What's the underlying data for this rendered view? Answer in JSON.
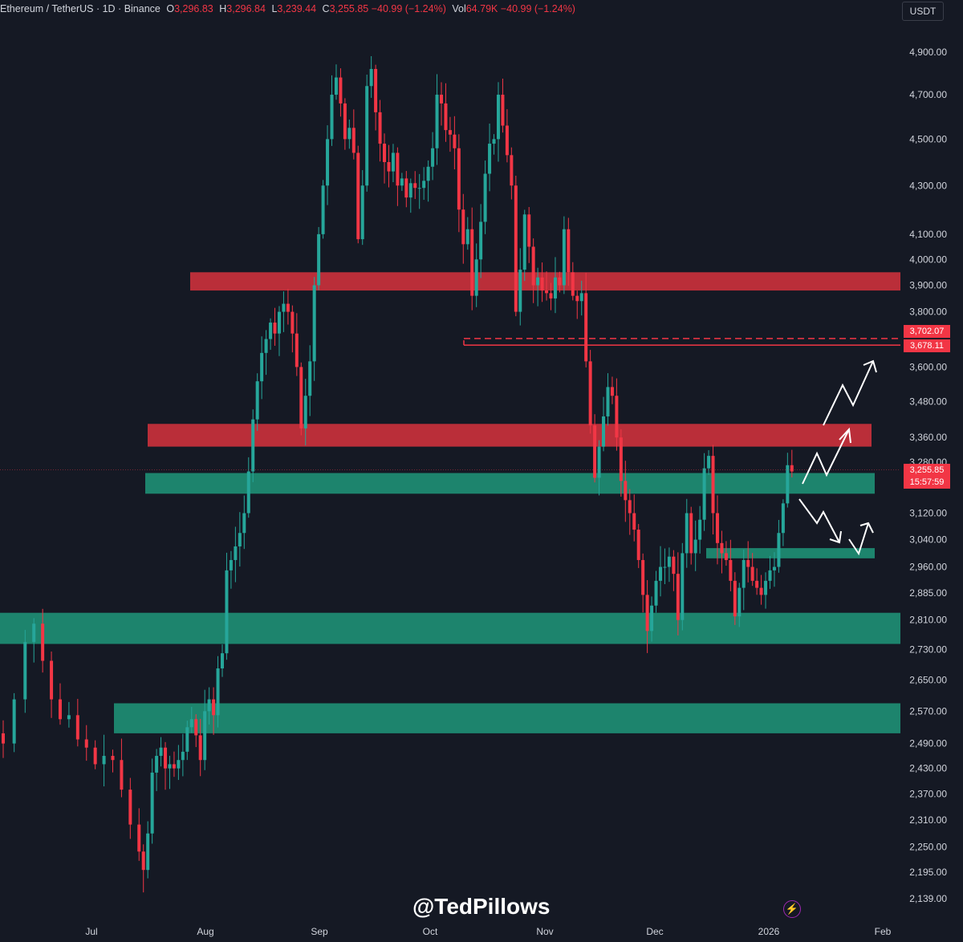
{
  "header": {
    "symbol": "Ethereum / TetherUS · 1D · Binance",
    "open_label": "O",
    "open": "3,296.83",
    "high_label": "H",
    "high": "3,296.84",
    "low_label": "L",
    "low": "3,239.44",
    "close_label": "C",
    "close": "3,255.85",
    "change": "−40.99 (−1.24%)",
    "volume_label": "Vol",
    "volume": "64.79K",
    "volume_change": "−40.99 (−1.24%)"
  },
  "currency_button": "USDT",
  "watermark": "@TedPillows",
  "price_tags": {
    "upper": "3,702.07",
    "lower": "3,678.11",
    "last": "3,255.85",
    "countdown": "15:57:59"
  },
  "colors": {
    "background": "#151924",
    "up": "#26a69a",
    "down": "#f23645",
    "resistance_zone": "#c9303c",
    "support_zone": "#1d8a72"
  },
  "chart_data": {
    "type": "candlestick",
    "title": "Ethereum / TetherUS · 1D · Binance",
    "y_ticks": [
      "4,900.00",
      "4,700.00",
      "4,500.00",
      "4,300.00",
      "4,100.00",
      "4,000.00",
      "3,900.00",
      "3,800.00",
      "3,600.00",
      "3,480.00",
      "3,360.00",
      "3,280.00",
      "3,120.00",
      "3,040.00",
      "2,960.00",
      "2,885.00",
      "2,810.00",
      "2,730.00",
      "2,650.00",
      "2,570.00",
      "2,490.00",
      "2,430.00",
      "2,370.00",
      "2,310.00",
      "2,250.00",
      "2,195.00",
      "2,139.00"
    ],
    "x_ticks": [
      "Jul",
      "Aug",
      "Sep",
      "Oct",
      "Nov",
      "Dec",
      "2026",
      "Feb"
    ],
    "y_scale": "log",
    "ylim": [
      2100,
      5000
    ],
    "resistance_zones": [
      [
        3880,
        3950
      ],
      [
        3330,
        3405
      ]
    ],
    "support_zones": [
      [
        3180,
        3245
      ],
      [
        2985,
        3015
      ],
      [
        2745,
        2830
      ],
      [
        2515,
        2590
      ]
    ],
    "levels": [
      3702.07,
      3678.11
    ],
    "last_price": 3255.85,
    "series_close_path": [
      [
        0,
        2490
      ],
      [
        5,
        2600
      ],
      [
        10,
        2750
      ],
      [
        14,
        2800
      ],
      [
        18,
        2700
      ],
      [
        22,
        2600
      ],
      [
        26,
        2550
      ],
      [
        30,
        2560
      ],
      [
        34,
        2500
      ],
      [
        38,
        2480
      ],
      [
        42,
        2440
      ],
      [
        46,
        2460
      ],
      [
        50,
        2450
      ],
      [
        54,
        2380
      ],
      [
        58,
        2300
      ],
      [
        62,
        2240
      ],
      [
        64,
        2200
      ],
      [
        66,
        2280
      ],
      [
        68,
        2420
      ],
      [
        70,
        2460
      ],
      [
        72,
        2480
      ],
      [
        74,
        2430
      ],
      [
        76,
        2440
      ],
      [
        78,
        2430
      ],
      [
        80,
        2450
      ],
      [
        82,
        2470
      ],
      [
        84,
        2530
      ],
      [
        86,
        2550
      ],
      [
        88,
        2510
      ],
      [
        90,
        2450
      ],
      [
        92,
        2570
      ],
      [
        94,
        2600
      ],
      [
        96,
        2560
      ],
      [
        98,
        2680
      ],
      [
        100,
        2720
      ],
      [
        102,
        2950
      ],
      [
        104,
        2980
      ],
      [
        106,
        3020
      ],
      [
        108,
        3060
      ],
      [
        110,
        3120
      ],
      [
        112,
        3250
      ],
      [
        114,
        3420
      ],
      [
        116,
        3550
      ],
      [
        118,
        3650
      ],
      [
        120,
        3700
      ],
      [
        122,
        3760
      ],
      [
        124,
        3720
      ],
      [
        126,
        3800
      ],
      [
        128,
        3830
      ],
      [
        130,
        3800
      ],
      [
        132,
        3720
      ],
      [
        134,
        3600
      ],
      [
        136,
        3390
      ],
      [
        138,
        3500
      ],
      [
        140,
        3620
      ],
      [
        142,
        3900
      ],
      [
        144,
        4100
      ],
      [
        146,
        4300
      ],
      [
        148,
        4500
      ],
      [
        150,
        4700
      ],
      [
        152,
        4780
      ],
      [
        154,
        4660
      ],
      [
        156,
        4500
      ],
      [
        158,
        4550
      ],
      [
        160,
        4440
      ],
      [
        162,
        4080
      ],
      [
        164,
        4300
      ],
      [
        166,
        4740
      ],
      [
        168,
        4820
      ],
      [
        170,
        4620
      ],
      [
        172,
        4480
      ],
      [
        174,
        4400
      ],
      [
        176,
        4360
      ],
      [
        178,
        4440
      ],
      [
        180,
        4300
      ],
      [
        182,
        4330
      ],
      [
        184,
        4250
      ],
      [
        186,
        4310
      ],
      [
        188,
        4290
      ],
      [
        190,
        4290
      ],
      [
        192,
        4320
      ],
      [
        194,
        4380
      ],
      [
        196,
        4460
      ],
      [
        198,
        4700
      ],
      [
        200,
        4660
      ],
      [
        202,
        4540
      ],
      [
        204,
        4520
      ],
      [
        206,
        4460
      ],
      [
        208,
        4200
      ],
      [
        210,
        4060
      ],
      [
        212,
        4120
      ],
      [
        214,
        3860
      ],
      [
        216,
        4000
      ],
      [
        218,
        4150
      ],
      [
        220,
        4350
      ],
      [
        222,
        4480
      ],
      [
        224,
        4500
      ],
      [
        226,
        4700
      ],
      [
        228,
        4560
      ],
      [
        230,
        4430
      ],
      [
        232,
        4300
      ],
      [
        234,
        3800
      ],
      [
        236,
        3960
      ],
      [
        238,
        4180
      ],
      [
        240,
        4050
      ],
      [
        242,
        3900
      ],
      [
        244,
        3930
      ],
      [
        246,
        3880
      ],
      [
        248,
        3870
      ],
      [
        250,
        3850
      ],
      [
        252,
        3930
      ],
      [
        254,
        3900
      ],
      [
        256,
        4120
      ],
      [
        258,
        3950
      ],
      [
        260,
        3860
      ],
      [
        262,
        3840
      ],
      [
        264,
        3870
      ],
      [
        266,
        3620
      ],
      [
        268,
        3400
      ],
      [
        270,
        3230
      ],
      [
        272,
        3330
      ],
      [
        274,
        3430
      ],
      [
        276,
        3530
      ],
      [
        278,
        3500
      ],
      [
        280,
        3360
      ],
      [
        282,
        3220
      ],
      [
        284,
        3160
      ],
      [
        286,
        3120
      ],
      [
        288,
        3070
      ],
      [
        290,
        2980
      ],
      [
        292,
        2880
      ],
      [
        294,
        2780
      ],
      [
        296,
        2850
      ],
      [
        298,
        2920
      ],
      [
        300,
        2960
      ],
      [
        302,
        2960
      ],
      [
        304,
        2990
      ],
      [
        306,
        2940
      ],
      [
        308,
        2810
      ],
      [
        310,
        3000
      ],
      [
        312,
        3120
      ],
      [
        314,
        3000
      ],
      [
        316,
        3040
      ],
      [
        318,
        3100
      ],
      [
        320,
        3260
      ],
      [
        322,
        3300
      ],
      [
        324,
        3120
      ],
      [
        326,
        3030
      ],
      [
        328,
        3000
      ],
      [
        330,
        2980
      ],
      [
        332,
        2920
      ],
      [
        334,
        2820
      ],
      [
        336,
        2900
      ],
      [
        338,
        2980
      ],
      [
        340,
        2960
      ],
      [
        342,
        2920
      ],
      [
        344,
        2900
      ],
      [
        346,
        2880
      ],
      [
        348,
        2920
      ],
      [
        350,
        2950
      ],
      [
        352,
        2960
      ],
      [
        354,
        3060
      ],
      [
        356,
        3150
      ],
      [
        358,
        3270
      ],
      [
        360,
        3250
      ]
    ]
  }
}
